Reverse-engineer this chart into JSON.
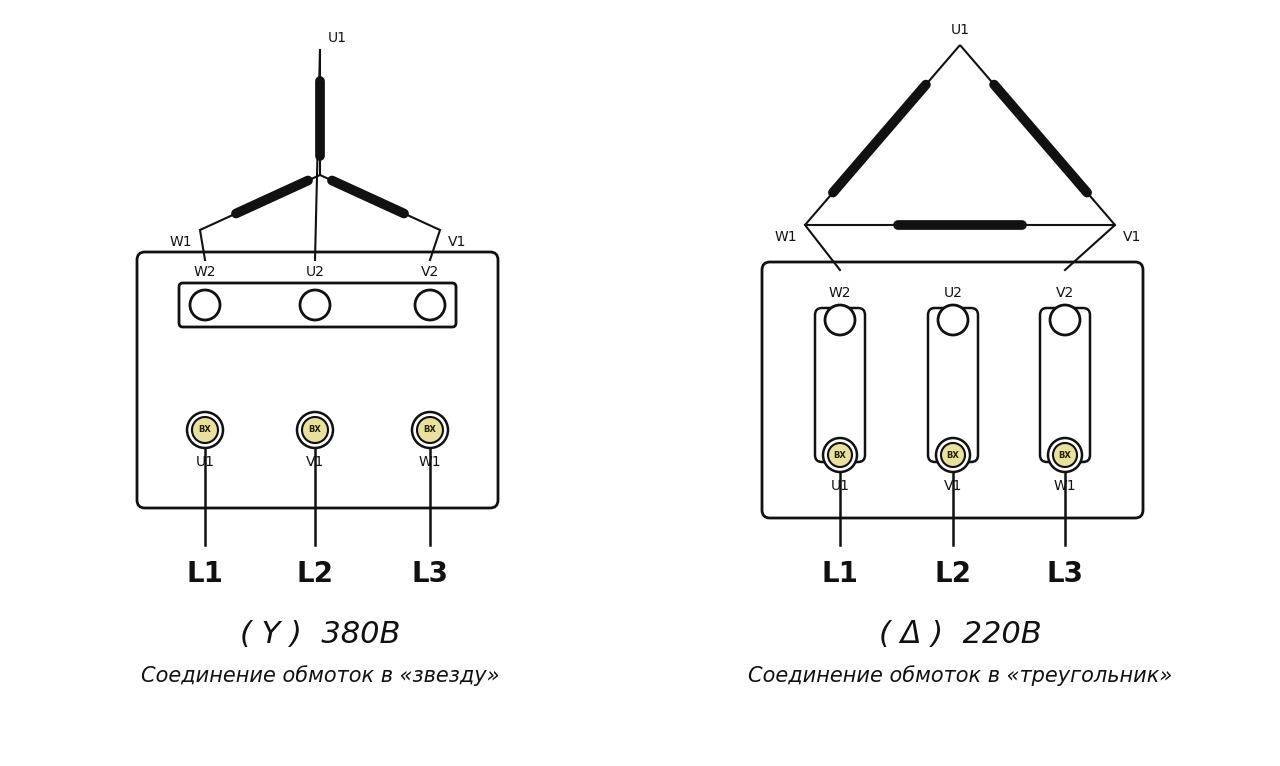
{
  "bg_color": "#ffffff",
  "text_color": "#111111",
  "line_color": "#111111",
  "winding_color": "#e8dfa0",
  "star_label": "( Y )  380В",
  "star_sub": "Соединение обмоток в «звезду»",
  "delta_label": "( Δ )  220В",
  "delta_sub": "Соединение обмоток в «треугольник»"
}
